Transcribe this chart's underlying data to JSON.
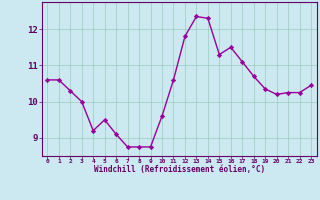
{
  "x": [
    0,
    1,
    2,
    3,
    4,
    5,
    6,
    7,
    8,
    9,
    10,
    11,
    12,
    13,
    14,
    15,
    16,
    17,
    18,
    19,
    20,
    21,
    22,
    23
  ],
  "y": [
    10.6,
    10.6,
    10.3,
    10.0,
    9.2,
    9.5,
    9.1,
    8.75,
    8.75,
    8.75,
    9.6,
    10.6,
    11.8,
    12.35,
    12.3,
    11.3,
    11.5,
    11.1,
    10.7,
    10.35,
    10.2,
    10.25,
    10.25,
    10.45
  ],
  "line_color": "#990099",
  "marker": "D",
  "marker_size": 2.2,
  "bg_color": "#cce8f0",
  "grid_color": "#99ccbb",
  "xlabel": "Windchill (Refroidissement éolien,°C)",
  "xlabel_color": "#660066",
  "tick_color": "#660066",
  "ylim": [
    8.5,
    12.75
  ],
  "yticks": [
    9,
    10,
    11,
    12
  ],
  "xlim": [
    -0.5,
    23.5
  ],
  "xticks": [
    0,
    1,
    2,
    3,
    4,
    5,
    6,
    7,
    8,
    9,
    10,
    11,
    12,
    13,
    14,
    15,
    16,
    17,
    18,
    19,
    20,
    21,
    22,
    23
  ],
  "line_width": 1.0
}
